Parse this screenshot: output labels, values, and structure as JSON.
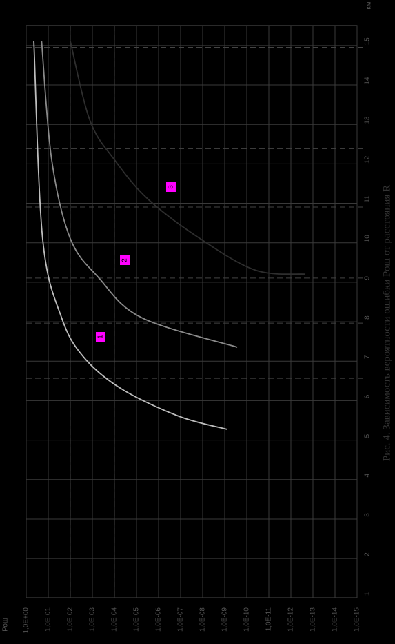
{
  "chart_data": {
    "type": "line",
    "title": "Рис. 4. Зависимость вероятности ошибки Рош от расстояния R",
    "x_label": "км",
    "y_label": "Рош",
    "log_y": true,
    "grid": true,
    "xlim": [
      0.9,
      15.4
    ],
    "xticks": [
      1,
      2,
      3,
      4,
      5,
      6,
      7,
      8,
      9,
      10,
      11,
      12,
      13,
      14,
      15
    ],
    "ylim": [
      1,
      1e-15
    ],
    "yticks": [
      {
        "value": 1,
        "label": "1,0E+00"
      },
      {
        "value": 0.1,
        "label": "1,0E-01"
      },
      {
        "value": 0.01,
        "label": "1,0E-02"
      },
      {
        "value": 0.001,
        "label": "1,0E-03"
      },
      {
        "value": 0.0001,
        "label": "1,0E-04"
      },
      {
        "value": 1e-05,
        "label": "1,0E-05"
      },
      {
        "value": 1e-06,
        "label": "1,0E-06"
      },
      {
        "value": 1e-07,
        "label": "1,0E-07"
      },
      {
        "value": 1e-08,
        "label": "1,0E-08"
      },
      {
        "value": 1e-09,
        "label": "1,0E-09"
      },
      {
        "value": 1e-10,
        "label": "1,0E-10"
      },
      {
        "value": 1e-11,
        "label": "1,0E-11"
      },
      {
        "value": 1e-12,
        "label": "1,0E-12"
      },
      {
        "value": 1e-13,
        "label": "1,0E-13"
      },
      {
        "value": 1e-14,
        "label": "1,0E-14"
      },
      {
        "value": 1e-15,
        "label": "1,0E-15"
      }
    ],
    "ref_y": [
      0.01,
      0.0001
    ],
    "ref_x": [
      6.46,
      7.86,
      9.0,
      10.8,
      12.28,
      14.85
    ],
    "series": [
      {
        "name": "1",
        "color": "#bdbdbd",
        "x": [
          15,
          10,
          8,
          7,
          6.2,
          5.5,
          5.17
        ],
        "values": [
          0.45,
          0.18,
          0.025,
          0.0025,
          5e-05,
          1.2e-07,
          8e-10
        ]
      },
      {
        "name": "2",
        "color": "#8a8a8a",
        "x": [
          15,
          12,
          10,
          9,
          8,
          7.25
        ],
        "values": [
          0.2,
          0.07,
          0.01,
          0.0005,
          6e-06,
          2.7e-10
        ]
      },
      {
        "name": "3",
        "color": "#2e2e2e",
        "x": [
          15,
          13,
          12,
          11,
          10,
          9.2,
          9.1
        ],
        "values": [
          0.01,
          0.0013,
          0.0001,
          3e-06,
          1.3e-08,
          4e-11,
          2.2e-13
        ]
      }
    ]
  }
}
